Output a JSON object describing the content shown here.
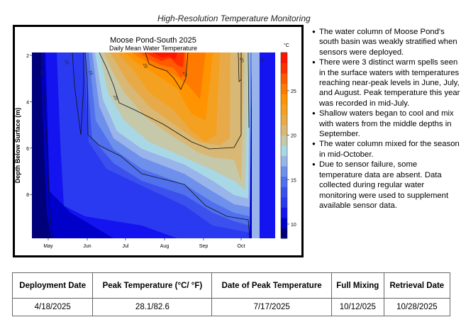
{
  "header": "High-Resolution Temperature Monitoring",
  "chart_data": {
    "type": "heatmap",
    "title": "Moose Pond-South 2025",
    "subtitle": "Daily Mean Water Temperature",
    "ylabel": "Depth Below Surface (m)",
    "xlabel": "",
    "x_ticks": [
      "May",
      "Jun",
      "Jul",
      "Aug",
      "Sep",
      "Oct"
    ],
    "y_ticks": [
      2,
      4,
      6,
      8
    ],
    "ylim": [
      9.9,
      1.9
    ],
    "colorbar": {
      "unit": "°C",
      "ticks": [
        10,
        15,
        20,
        25
      ],
      "range": [
        8.4,
        29.3
      ],
      "colors": [
        "#00007a",
        "#0000c8",
        "#1414f0",
        "#2a3af0",
        "#3c50ee",
        "#5070ee",
        "#6e90ec",
        "#98b4ea",
        "#a8d8e6",
        "#c6c8aa",
        "#d8b874",
        "#e8aa48",
        "#f4a020",
        "#ff9400",
        "#ff7a00",
        "#ff5a00",
        "#ff3000",
        "#ff1400"
      ]
    },
    "contour_labels": [
      "10",
      "15",
      "15",
      "20",
      "25",
      "25",
      "20",
      "10"
    ],
    "contour_levels": [
      10,
      15,
      20,
      25
    ]
  },
  "bullets": [
    "The water column of Moose Pond's south basin was weakly stratified when sensors were deployed.",
    "There were 3 distinct warm spells seen in the surface waters with temperatures reaching near-peak levels in June, July, and August. Peak temperature this year was recorded in mid-July.",
    "Shallow waters began to cool and mix with waters from the middle depths in September.",
    "The water column mixed for the season in mid-October.",
    "Due to sensor failure, some temperature data are absent. Data collected during regular water monitoring were used to supplement available sensor data."
  ],
  "table": {
    "headers": [
      "Deployment Date",
      "Peak Temperature (°C/ °F)",
      "Date of Peak Temperature",
      "Full Mixing",
      "Retrieval Date"
    ],
    "rows": [
      [
        "4/18/2025",
        "28.1/82.6",
        "7/17/2025",
        "10/12/025",
        "10/28/2025"
      ]
    ]
  }
}
